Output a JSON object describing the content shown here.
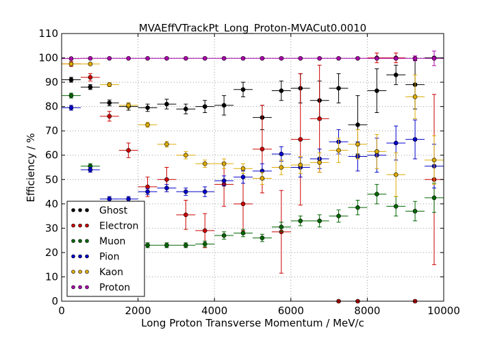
{
  "chart_data": {
    "type": "scatter",
    "title": "MVAEffVTrackPt_Long_Proton-MVACut0.0010",
    "xlabel": "Long Proton Transverse Momentum / MeV/c",
    "ylabel": "Efficiency / %",
    "xlim": [
      0,
      10000
    ],
    "ylim": [
      0,
      110
    ],
    "xticks": [
      0,
      2000,
      4000,
      6000,
      8000,
      10000
    ],
    "yticks": [
      0,
      10,
      20,
      30,
      40,
      50,
      60,
      70,
      80,
      90,
      100,
      110
    ],
    "grid": true,
    "legend_position": "lower-left",
    "x": [
      250,
      750,
      1250,
      1750,
      2250,
      2750,
      3250,
      3750,
      4250,
      4750,
      5250,
      5750,
      6250,
      6750,
      7250,
      7750,
      8250,
      8750,
      9250,
      9750
    ],
    "x_err": 250,
    "series": [
      {
        "name": "Ghost",
        "color": "#000000",
        "values": [
          91,
          88,
          81.5,
          80,
          79.5,
          81,
          79,
          80,
          80.5,
          87,
          75.5,
          86.5,
          87.5,
          82.5,
          87.5,
          72.5,
          86.5,
          93,
          89,
          100
        ],
        "errors": [
          1,
          1,
          1.2,
          1.5,
          1.5,
          2,
          2,
          2.5,
          4,
          3,
          5,
          4,
          6,
          8,
          6,
          12,
          9,
          4,
          10,
          0
        ]
      },
      {
        "name": "Electron",
        "color": "#cc0000",
        "values": [
          97.5,
          92,
          76,
          62,
          47,
          50,
          35.5,
          29,
          48,
          40,
          62.5,
          28.5,
          66.5,
          75,
          0,
          0,
          100,
          100,
          0,
          50
        ],
        "errors": [
          1,
          1.5,
          2,
          3,
          4,
          5,
          6,
          7,
          9,
          11,
          18,
          17,
          27,
          22,
          0,
          0,
          2,
          2,
          0,
          35
        ]
      },
      {
        "name": "Muon",
        "color": "#006600",
        "values": [
          84.5,
          55.5,
          38,
          28,
          23,
          23,
          23,
          23.5,
          27,
          28,
          26,
          30.5,
          33,
          33,
          35,
          38.5,
          44,
          39,
          37,
          42.5
        ],
        "errors": [
          1,
          1,
          1,
          1,
          1,
          1,
          1,
          1.2,
          1.5,
          1.5,
          1.5,
          2,
          2,
          2.5,
          2.5,
          3,
          4,
          4,
          4,
          6
        ]
      },
      {
        "name": "Pion",
        "color": "#0000cc",
        "values": [
          79.5,
          54,
          42,
          42,
          45,
          46.5,
          45,
          45,
          49.5,
          51,
          53.5,
          60.5,
          55,
          58.5,
          65.5,
          59.5,
          60,
          65,
          66.5,
          55.5
        ],
        "errors": [
          1,
          1,
          1,
          1,
          1.2,
          1.5,
          1.5,
          2,
          2,
          2.5,
          3,
          3,
          4,
          4,
          5,
          6,
          7,
          7,
          8,
          9
        ]
      },
      {
        "name": "Kaon",
        "color": "#ddaa00",
        "values": [
          97.5,
          97.5,
          89,
          80.5,
          72.5,
          64.5,
          60,
          56.5,
          56.5,
          54.5,
          50.5,
          55,
          56,
          57,
          62,
          64.5,
          61.5,
          52,
          84,
          58
        ],
        "errors": [
          0.5,
          0.5,
          0.8,
          1,
          1,
          1.2,
          1.5,
          1.5,
          2,
          2,
          2.5,
          3,
          3.5,
          4,
          5,
          6,
          7,
          9,
          9,
          10
        ]
      },
      {
        "name": "Proton",
        "color": "#aa00aa",
        "values": [
          99.7,
          99.8,
          99.8,
          99.8,
          99.8,
          99.8,
          99.8,
          99.8,
          99.8,
          99.8,
          99.8,
          99.8,
          99.8,
          99.8,
          99.8,
          99.8,
          99.8,
          99.8,
          99.8,
          99.8
        ],
        "errors": [
          0.2,
          0.1,
          0.1,
          0.1,
          0.1,
          0.1,
          0.1,
          0.1,
          0.1,
          0.1,
          0.1,
          0.1,
          0.1,
          0.1,
          0.2,
          0.2,
          0.3,
          0.5,
          1,
          3
        ]
      }
    ]
  }
}
